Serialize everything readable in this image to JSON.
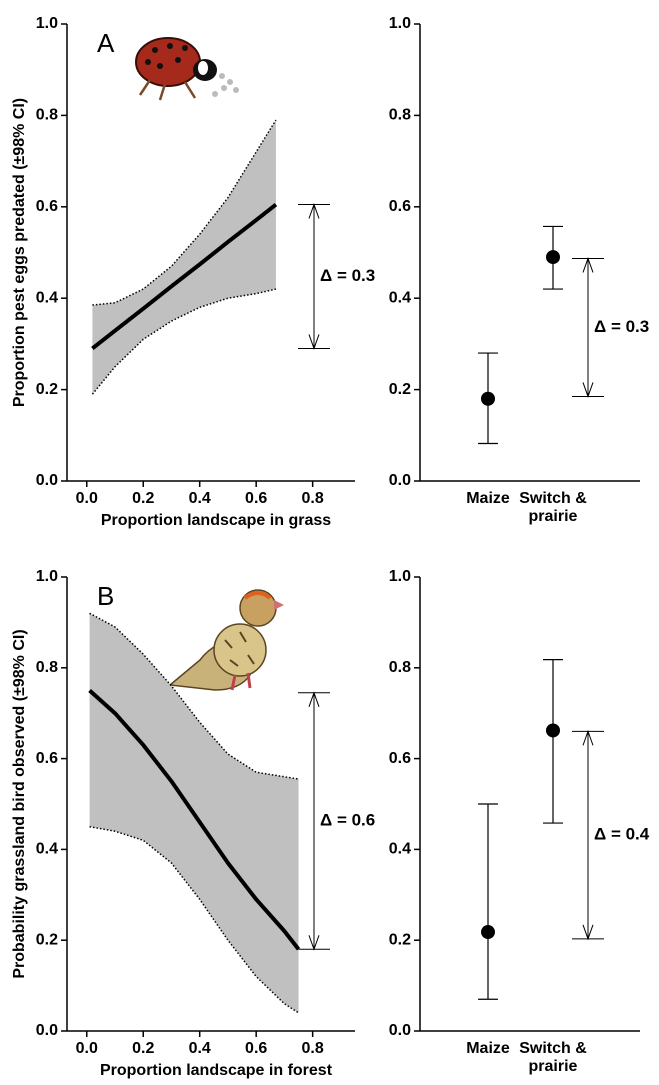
{
  "chart_data": [
    {
      "type": "line",
      "panel_label": "A",
      "ylabel": "Proportion pest eggs predated (±98% CI)",
      "xlabel": "Proportion landscape in grass",
      "xlim": [
        -0.07,
        0.95
      ],
      "ylim": [
        0,
        1
      ],
      "xticks": [
        {
          "value": 0,
          "label": "0.0"
        },
        0.2,
        0.4,
        0.6,
        0.8
      ],
      "yticks": [
        {
          "value": 0,
          "label": "0.0"
        },
        0.2,
        0.4,
        0.6,
        0.8,
        {
          "value": 1,
          "label": "1.0"
        }
      ],
      "x": [
        0.02,
        0.1,
        0.2,
        0.3,
        0.4,
        0.5,
        0.6,
        0.67
      ],
      "values": [
        0.29,
        0.329,
        0.377,
        0.426,
        0.474,
        0.523,
        0.571,
        0.605
      ],
      "ci_lower": [
        0.19,
        0.25,
        0.31,
        0.35,
        0.38,
        0.4,
        0.41,
        0.42
      ],
      "ci_upper": [
        0.385,
        0.39,
        0.42,
        0.47,
        0.54,
        0.62,
        0.72,
        0.79
      ],
      "color": "#000000",
      "band_color": "#c0c0c0",
      "annotation": {
        "text": "Δ = 0.3",
        "from": 0.29,
        "to": 0.605
      }
    },
    {
      "type": "errorbar",
      "ylim": [
        0,
        1
      ],
      "yticks": [
        {
          "value": 0,
          "label": "0.0"
        },
        0.2,
        0.4,
        0.6,
        0.8,
        {
          "value": 1,
          "label": "1.0"
        }
      ],
      "categories": [
        "Maize",
        "Switch &\nprairie"
      ],
      "values": [
        0.18,
        0.49
      ],
      "ci_lower": [
        0.082,
        0.42
      ],
      "ci_upper": [
        0.28,
        0.557
      ],
      "color": "#000000",
      "annotation": {
        "text": "Δ = 0.3",
        "from": 0.185,
        "to": 0.487
      }
    },
    {
      "type": "line",
      "panel_label": "B",
      "ylabel": "Probability grassland bird observed (±98% CI)",
      "xlabel": "Proportion landscape in forest",
      "xlim": [
        -0.07,
        0.95
      ],
      "ylim": [
        0,
        1
      ],
      "xticks": [
        {
          "value": 0,
          "label": "0.0"
        },
        0.2,
        0.4,
        0.6,
        0.8
      ],
      "yticks": [
        {
          "value": 0,
          "label": "0.0"
        },
        0.2,
        0.4,
        0.6,
        0.8,
        {
          "value": 1,
          "label": "1.0"
        }
      ],
      "x": [
        0.01,
        0.1,
        0.2,
        0.3,
        0.4,
        0.5,
        0.6,
        0.7,
        0.75
      ],
      "values": [
        0.75,
        0.7,
        0.63,
        0.55,
        0.46,
        0.37,
        0.29,
        0.22,
        0.18
      ],
      "ci_lower": [
        0.45,
        0.44,
        0.42,
        0.37,
        0.29,
        0.2,
        0.12,
        0.06,
        0.04
      ],
      "ci_upper": [
        0.92,
        0.89,
        0.83,
        0.76,
        0.68,
        0.61,
        0.57,
        0.56,
        0.555
      ],
      "color": "#000000",
      "band_color": "#c0c0c0",
      "annotation": {
        "text": "Δ = 0.6",
        "from": 0.18,
        "to": 0.745
      }
    },
    {
      "type": "errorbar",
      "ylim": [
        0,
        1
      ],
      "yticks": [
        {
          "value": 0,
          "label": "0.0"
        },
        0.2,
        0.4,
        0.6,
        0.8,
        {
          "value": 1,
          "label": "1.0"
        }
      ],
      "categories": [
        "Maize",
        "Switch &\nprairie"
      ],
      "values": [
        0.218,
        0.662
      ],
      "ci_lower": [
        0.07,
        0.458
      ],
      "ci_upper": [
        0.5,
        0.818
      ],
      "color": "#000000",
      "annotation": {
        "text": "Δ = 0.4",
        "from": 0.203,
        "to": 0.66
      }
    }
  ]
}
